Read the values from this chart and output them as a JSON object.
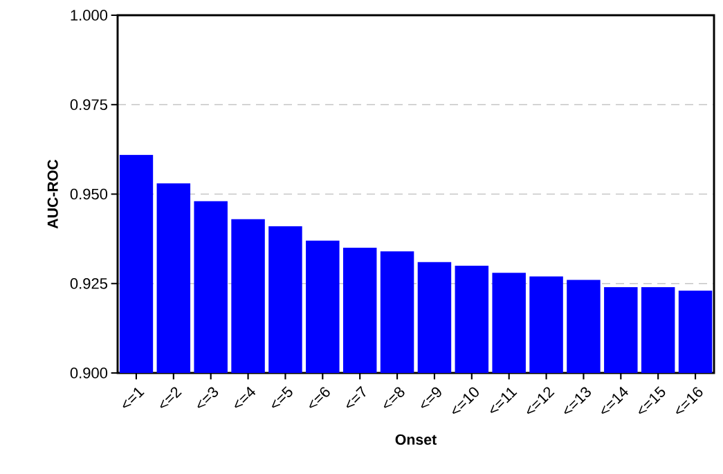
{
  "chart_data": {
    "type": "bar",
    "xlabel": "Onset",
    "ylabel": "AUC-ROC",
    "categories": [
      "<=1",
      "<=2",
      "<=3",
      "<=4",
      "<=5",
      "<=6",
      "<=7",
      "<=8",
      "<=9",
      "<=10",
      "<=11",
      "<=12",
      "<=13",
      "<=14",
      "<=15",
      "<=16"
    ],
    "values": [
      0.961,
      0.953,
      0.948,
      0.943,
      0.941,
      0.937,
      0.935,
      0.934,
      0.931,
      0.93,
      0.928,
      0.927,
      0.926,
      0.924,
      0.924,
      0.923
    ],
    "color": "#0000ff",
    "ylim": [
      0.9,
      1.0
    ],
    "yticks": [
      {
        "value": 0.9,
        "label": "0.900"
      },
      {
        "value": 0.925,
        "label": "0.925"
      },
      {
        "value": 0.95,
        "label": "0.950"
      },
      {
        "value": 0.975,
        "label": "0.975"
      },
      {
        "value": 1.0,
        "label": "1.000"
      }
    ],
    "grid": "y"
  }
}
